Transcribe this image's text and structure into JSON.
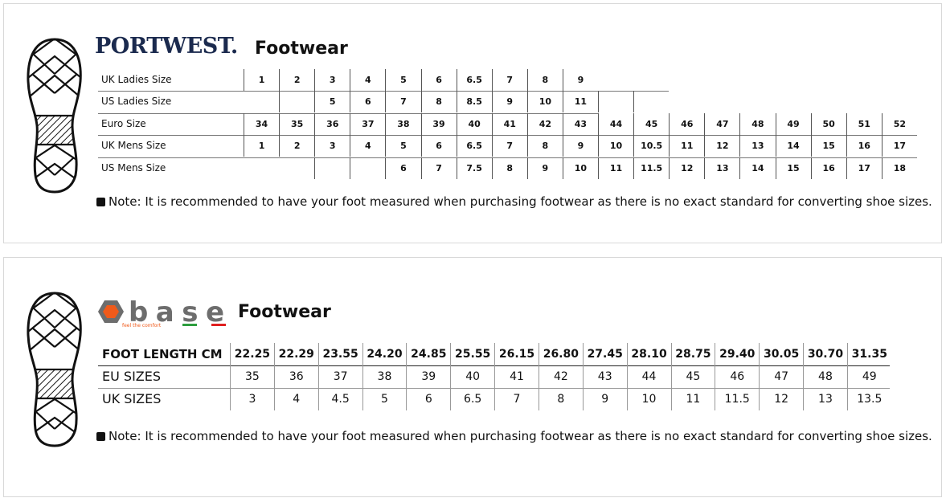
{
  "portwest": {
    "logo": "PORTWEST.",
    "title": "Footwear",
    "rows": [
      {
        "label": "UK Ladies Size",
        "values": [
          "1",
          "2",
          "3",
          "4",
          "5",
          "6",
          "6.5",
          "7",
          "8",
          "9"
        ]
      },
      {
        "label": "US Ladies Size",
        "values": [
          "",
          "",
          "5",
          "6",
          "7",
          "8",
          "8.5",
          "9",
          "10",
          "11",
          "",
          ""
        ]
      },
      {
        "label": "Euro Size",
        "values": [
          "34",
          "35",
          "36",
          "37",
          "38",
          "39",
          "40",
          "41",
          "42",
          "43",
          "44",
          "45",
          "46",
          "47",
          "48",
          "49",
          "50",
          "51",
          "52"
        ]
      },
      {
        "label": "UK Mens Size",
        "values": [
          "1",
          "2",
          "3",
          "4",
          "5",
          "6",
          "6.5",
          "7",
          "8",
          "9",
          "10",
          "10.5",
          "11",
          "12",
          "13",
          "14",
          "15",
          "16",
          "17"
        ]
      },
      {
        "label": "US Mens Size",
        "values": [
          "",
          "",
          "",
          "",
          "6",
          "7",
          "7.5",
          "8",
          "9",
          "10",
          "11",
          "11.5",
          "12",
          "13",
          "14",
          "15",
          "16",
          "17",
          "18"
        ]
      }
    ],
    "note": "Note: It is recommended to have your foot measured when purchasing footwear as there is no exact standard for converting shoe sizes."
  },
  "base": {
    "logo": "base",
    "tagline": "feel the comfort",
    "title": "Footwear",
    "colors": {
      "orange": "#f05a1a",
      "grey": "#6d6d6d",
      "green": "#2e9e3e",
      "red": "#e02020"
    },
    "header": {
      "label": "FOOT LENGTH CM",
      "values": [
        "22.25",
        "22.29",
        "23.55",
        "24.20",
        "24.85",
        "25.55",
        "26.15",
        "26.80",
        "27.45",
        "28.10",
        "28.75",
        "29.40",
        "30.05",
        "30.70",
        "31.35"
      ]
    },
    "rows": [
      {
        "label": "EU SIZES",
        "values": [
          "35",
          "36",
          "37",
          "38",
          "39",
          "40",
          "41",
          "42",
          "43",
          "44",
          "45",
          "46",
          "47",
          "48",
          "49"
        ]
      },
      {
        "label": "UK SIZES",
        "values": [
          "3",
          "4",
          "4.5",
          "5",
          "6",
          "6.5",
          "7",
          "8",
          "9",
          "10",
          "11",
          "11.5",
          "12",
          "13",
          "13.5"
        ]
      }
    ],
    "note": "Note: It is recommended to have your foot measured when purchasing footwear as there is no exact standard for converting shoe sizes."
  },
  "icons": {
    "sole": "shoe-sole-icon",
    "note": "checkbox-icon"
  }
}
